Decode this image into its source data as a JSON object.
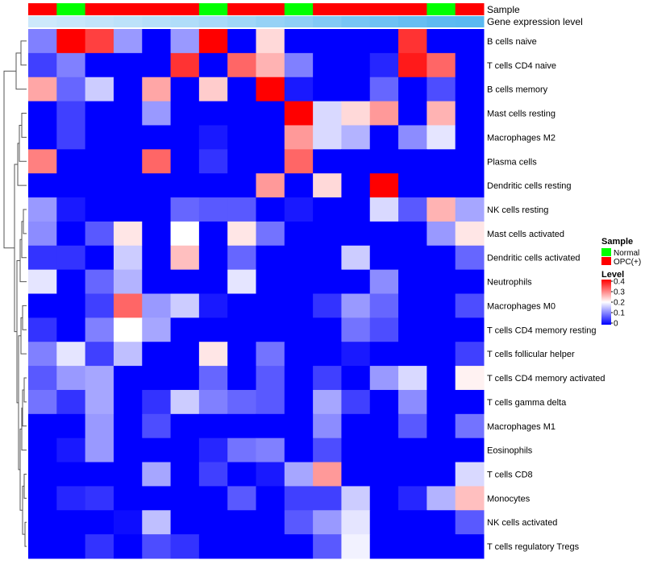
{
  "chart_data": {
    "type": "heatmap",
    "rows": [
      "B cells naive",
      "T cells CD4 naive",
      "B cells memory",
      "Mast cells resting",
      "Macrophages M2",
      "Plasma cells",
      "Dendritic cells resting",
      "NK cells resting",
      "Mast cells activated",
      "Dendritic cells activated",
      "Neutrophils",
      "Macrophages M0",
      "T cells CD4 memory resting",
      "T cells follicular helper",
      "T cells CD4 memory activated",
      "T cells gamma delta",
      "Macrophages M1",
      "Eosinophils",
      "T cells CD8",
      "Monocytes",
      "NK cells activated",
      "T cells regulatory  Tregs"
    ],
    "sample_annotation": [
      "OPC(+)",
      "Normal",
      "OPC(+)",
      "OPC(+)",
      "OPC(+)",
      "OPC(+)",
      "Normal",
      "OPC(+)",
      "OPC(+)",
      "Normal",
      "OPC(+)",
      "OPC(+)",
      "OPC(+)",
      "OPC(+)",
      "Normal",
      "OPC(+)"
    ],
    "gene_expression_level": [
      0.0,
      0.02,
      0.04,
      0.06,
      0.08,
      0.1,
      0.13,
      0.16,
      0.19,
      0.22,
      0.26,
      0.3,
      0.33,
      0.36,
      0.39,
      0.4
    ],
    "values": [
      [
        0.1,
        0.4,
        0.35,
        0.12,
        0.0,
        0.12,
        0.4,
        0.0,
        0.23,
        0.0,
        0.0,
        0.0,
        0.0,
        0.36,
        0.0,
        0.0
      ],
      [
        0.05,
        0.1,
        0.0,
        0.0,
        0.0,
        0.36,
        0.0,
        0.32,
        0.26,
        0.1,
        0.0,
        0.0,
        0.03,
        0.38,
        0.32,
        0.0
      ],
      [
        0.27,
        0.08,
        0.16,
        0.0,
        0.27,
        0.0,
        0.24,
        0.0,
        0.4,
        0.02,
        0.0,
        0.0,
        0.08,
        0.0,
        0.06,
        0.0
      ],
      [
        0.0,
        0.05,
        0.0,
        0.0,
        0.12,
        0.0,
        0.0,
        0.0,
        0.0,
        0.4,
        0.17,
        0.23,
        0.28,
        0.0,
        0.26,
        0.0
      ],
      [
        0.0,
        0.05,
        0.0,
        0.0,
        0.0,
        0.0,
        0.02,
        0.0,
        0.0,
        0.28,
        0.17,
        0.14,
        0.0,
        0.11,
        0.18,
        0.0
      ],
      [
        0.3,
        0.0,
        0.0,
        0.0,
        0.32,
        0.0,
        0.04,
        0.0,
        0.0,
        0.32,
        0.0,
        0.0,
        0.0,
        0.0,
        0.0,
        0.0
      ],
      [
        0.0,
        0.0,
        0.0,
        0.0,
        0.0,
        0.0,
        0.0,
        0.0,
        0.28,
        0.0,
        0.23,
        0.0,
        0.4,
        0.0,
        0.0,
        0.0
      ],
      [
        0.12,
        0.02,
        0.0,
        0.0,
        0.0,
        0.08,
        0.07,
        0.07,
        0.0,
        0.02,
        0.0,
        0.0,
        0.17,
        0.07,
        0.26,
        0.13
      ],
      [
        0.11,
        0.0,
        0.07,
        0.22,
        0.0,
        0.2,
        0.0,
        0.22,
        0.09,
        0.0,
        0.0,
        0.0,
        0.0,
        0.0,
        0.12,
        0.22
      ],
      [
        0.04,
        0.04,
        0.0,
        0.16,
        0.0,
        0.25,
        0.0,
        0.08,
        0.0,
        0.0,
        0.0,
        0.16,
        0.0,
        0.0,
        0.0,
        0.08
      ],
      [
        0.18,
        0.0,
        0.08,
        0.14,
        0.0,
        0.0,
        0.0,
        0.18,
        0.0,
        0.0,
        0.0,
        0.0,
        0.11,
        0.0,
        0.0,
        0.0
      ],
      [
        0.0,
        0.0,
        0.05,
        0.32,
        0.12,
        0.16,
        0.02,
        0.0,
        0.0,
        0.0,
        0.04,
        0.12,
        0.08,
        0.0,
        0.0,
        0.06
      ],
      [
        0.04,
        0.0,
        0.1,
        0.2,
        0.13,
        0.0,
        0.0,
        0.0,
        0.0,
        0.0,
        0.0,
        0.09,
        0.06,
        0.0,
        0.0,
        0.0
      ],
      [
        0.1,
        0.18,
        0.05,
        0.15,
        0.0,
        0.0,
        0.22,
        0.0,
        0.09,
        0.0,
        0.0,
        0.02,
        0.0,
        0.0,
        0.0,
        0.05
      ],
      [
        0.07,
        0.12,
        0.13,
        0.0,
        0.0,
        0.0,
        0.08,
        0.0,
        0.07,
        0.0,
        0.05,
        0.0,
        0.12,
        0.17,
        0.0,
        0.21
      ],
      [
        0.09,
        0.04,
        0.13,
        0.0,
        0.04,
        0.16,
        0.1,
        0.08,
        0.07,
        0.0,
        0.13,
        0.05,
        0.0,
        0.11,
        0.0,
        0.0
      ],
      [
        0.0,
        0.0,
        0.12,
        0.0,
        0.06,
        0.0,
        0.0,
        0.0,
        0.0,
        0.0,
        0.11,
        0.0,
        0.0,
        0.07,
        0.0,
        0.09
      ],
      [
        0.0,
        0.02,
        0.12,
        0.0,
        0.0,
        0.0,
        0.03,
        0.09,
        0.1,
        0.0,
        0.06,
        0.0,
        0.0,
        0.0,
        0.0,
        0.0
      ],
      [
        0.0,
        0.0,
        0.0,
        0.0,
        0.13,
        0.0,
        0.05,
        0.0,
        0.02,
        0.13,
        0.28,
        0.0,
        0.0,
        0.0,
        0.0,
        0.17
      ],
      [
        0.0,
        0.03,
        0.04,
        0.0,
        0.0,
        0.0,
        0.0,
        0.07,
        0.0,
        0.05,
        0.05,
        0.16,
        0.0,
        0.03,
        0.14,
        0.25
      ],
      [
        0.0,
        0.0,
        0.0,
        0.01,
        0.15,
        0.0,
        0.0,
        0.0,
        0.0,
        0.07,
        0.12,
        0.18,
        0.0,
        0.0,
        0.0,
        0.07
      ],
      [
        0.0,
        0.0,
        0.04,
        0.0,
        0.06,
        0.04,
        0.0,
        0.0,
        0.0,
        0.0,
        0.07,
        0.19,
        0.0,
        0.0,
        0.0,
        0.0
      ]
    ],
    "color_scale": {
      "min": 0,
      "mid": 0.2,
      "max": 0.4,
      "low": "#0000ff",
      "midColor": "#ffffff",
      "high": "#ff0000"
    },
    "annotation_tracks": [
      "Sample",
      "Gene expression level"
    ],
    "legends": {
      "sample": {
        "title": "Sample",
        "entries": [
          {
            "label": "Normal",
            "color": "#00ff00"
          },
          {
            "label": "OPC(+)",
            "color": "#ff0000"
          }
        ]
      },
      "level": {
        "title": "Level",
        "ticks": [
          "0.4",
          "0.3",
          "0.2",
          "0.1",
          "0"
        ]
      }
    },
    "level_gradient": [
      "#cde9fb",
      "#5ab9f1"
    ],
    "legend_placement": "right",
    "row_dendrogram": true
  }
}
